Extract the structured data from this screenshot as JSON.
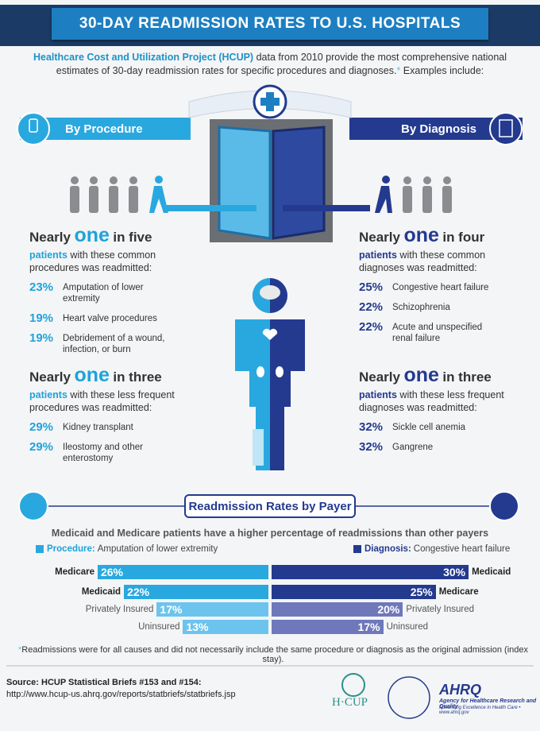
{
  "header": {
    "title": "30-DAY READMISSION RATES TO U.S. HOSPITALS"
  },
  "intro": {
    "highlight": "Healthcare Cost and Utilization Project (HCUP)",
    "text": " data from 2010 provide the most comprehensive national estimates of 30-day readmission rates for specific procedures and diagnoses.",
    "asterisk": "*",
    "text_end": " Examples include:"
  },
  "procedure": {
    "heading": "By Procedure",
    "common": {
      "nearly": "Nearly",
      "one": "one",
      "fraction": "in five",
      "lead": "patients",
      "text": "with these common procedures was readmitted:",
      "items": [
        {
          "rate": "23%",
          "label": "Amputation of lower extremity"
        },
        {
          "rate": "19%",
          "label": "Heart valve procedures"
        },
        {
          "rate": "19%",
          "label": "Debridement of a wound, infection, or burn"
        }
      ]
    },
    "less": {
      "nearly": "Nearly",
      "one": "one",
      "fraction": "in three",
      "lead": "patients",
      "text": "with these less frequent procedures was readmitted:",
      "items": [
        {
          "rate": "29%",
          "label": "Kidney transplant"
        },
        {
          "rate": "29%",
          "label": "Ileostomy and other enterostomy"
        }
      ]
    }
  },
  "diagnosis": {
    "heading": "By Diagnosis",
    "common": {
      "nearly": "Nearly",
      "one": "one",
      "fraction": "in four",
      "lead": "patients",
      "text": "with these common diagnoses was readmitted:",
      "items": [
        {
          "rate": "25%",
          "label": "Congestive heart failure"
        },
        {
          "rate": "22%",
          "label": "Schizophrenia"
        },
        {
          "rate": "22%",
          "label": "Acute and unspecified renal failure"
        }
      ]
    },
    "less": {
      "nearly": "Nearly",
      "one": "one",
      "fraction": "in three",
      "lead": "patients",
      "text": "with these less frequent diagnoses was readmitted:",
      "items": [
        {
          "rate": "32%",
          "label": "Sickle cell anemia"
        },
        {
          "rate": "32%",
          "label": "Gangrene"
        }
      ]
    }
  },
  "payer": {
    "title": "Readmission Rates by Payer",
    "subtitle": "Medicaid and Medicare patients have a higher percentage of readmissions than other payers",
    "legend_procedure": {
      "label": "Procedure:",
      "text": "Amputation of lower extremity",
      "color": "#29a8e0"
    },
    "legend_diagnosis": {
      "label": "Diagnosis:",
      "text": "Congestive heart failure",
      "color": "#233a8f"
    },
    "procedure_rows": [
      {
        "payer": "Medicare",
        "value": 26,
        "label": "26%",
        "color": "#29a8e0"
      },
      {
        "payer": "Medicaid",
        "value": 22,
        "label": "22%",
        "color": "#29a8e0"
      },
      {
        "payer": "Privately Insured",
        "value": 17,
        "label": "17%",
        "color": "#6cc4ee"
      },
      {
        "payer": "Uninsured",
        "value": 13,
        "label": "13%",
        "color": "#6cc4ee"
      }
    ],
    "diagnosis_rows": [
      {
        "payer": "Medicaid",
        "value": 30,
        "label": "30%",
        "color": "#233a8f"
      },
      {
        "payer": "Medicare",
        "value": 25,
        "label": "25%",
        "color": "#233a8f"
      },
      {
        "payer": "Privately Insured",
        "value": 20,
        "label": "20%",
        "color": "#6e78ba"
      },
      {
        "payer": "Uninsured",
        "value": 17,
        "label": "17%",
        "color": "#6e78ba"
      }
    ]
  },
  "footnote": {
    "asterisk": "*",
    "text": "Readmissions were for all causes and did not necessarily include the same procedure or diagnosis as the original admission (index stay)."
  },
  "source": {
    "line1": "Source: HCUP Statistical Briefs #153 and #154:",
    "line2": "http://www.hcup-us.ahrq.gov/reports/statbriefs/statbriefs.jsp"
  },
  "logos": {
    "hcup": "H·CUP",
    "ahrq": "AHRQ",
    "ahrq_name": "Agency for Healthcare Research and Quality",
    "ahrq_tagline": "Advancing Excellence in Health Care • www.ahrq.gov"
  }
}
